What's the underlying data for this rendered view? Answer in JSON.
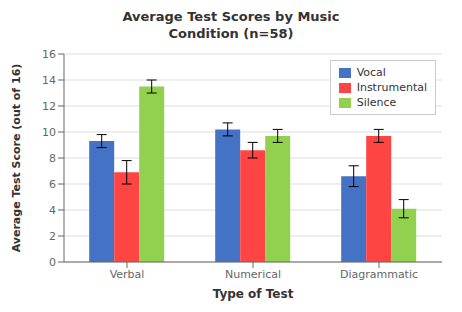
{
  "chart_data": {
    "type": "bar",
    "title": "Average Test Scores by Music\nCondition (n=58)",
    "xlabel": "Type of Test",
    "ylabel": "Average Test Score (out of 16)",
    "categories": [
      "Verbal",
      "Numerical",
      "Diagrammatic"
    ],
    "series": [
      {
        "name": "Vocal",
        "color": "#4472C4",
        "values": [
          9.3,
          10.2,
          6.6
        ],
        "errors": [
          0.5,
          0.5,
          0.8
        ]
      },
      {
        "name": "Instrumental",
        "color": "#FF4444",
        "values": [
          6.9,
          8.6,
          9.7
        ],
        "errors": [
          0.9,
          0.6,
          0.5
        ]
      },
      {
        "name": "Silence",
        "color": "#92D050",
        "values": [
          13.5,
          9.7,
          4.1
        ],
        "errors": [
          0.5,
          0.5,
          0.7
        ]
      }
    ],
    "ylim": [
      0,
      16
    ],
    "yticks": [
      0,
      2,
      4,
      6,
      8,
      10,
      12,
      14,
      16
    ],
    "grid": true,
    "legend": "upper right"
  }
}
